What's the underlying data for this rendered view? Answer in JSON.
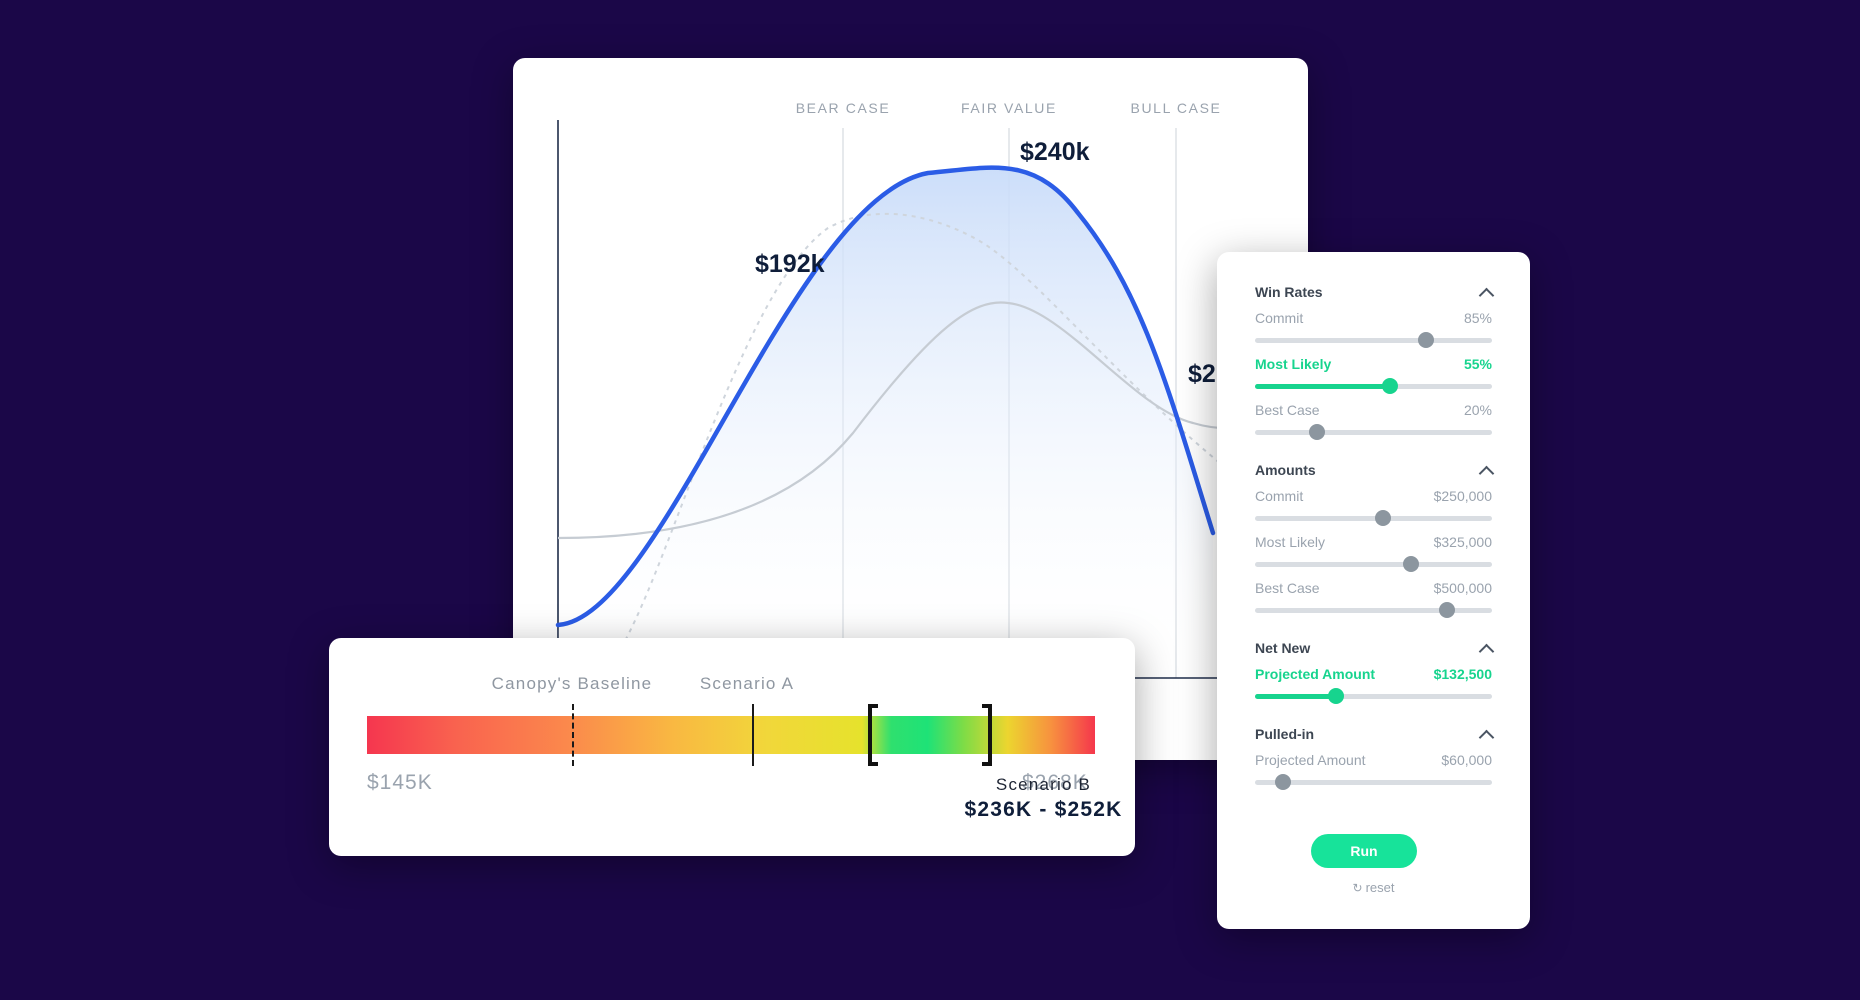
{
  "chart": {
    "zones": [
      "BEAR CASE",
      "FAIR VALUE",
      "BULL CASE"
    ],
    "value_labels": [
      "$192k",
      "$240k",
      "$2"
    ]
  },
  "range": {
    "baseline_label": "Canopy's Baseline",
    "scenario_a_label": "Scenario A",
    "min_label": "$145K",
    "max_label": "$268K",
    "scenario_b_name": "Scenario B",
    "scenario_b_range": "$236K - $252K"
  },
  "panel": {
    "win_rates": {
      "title": "Win Rates",
      "rows": [
        {
          "label": "Commit",
          "value": "85%",
          "level": 0.72
        },
        {
          "label": "Most Likely",
          "value": "55%",
          "level": 0.57
        },
        {
          "label": "Best Case",
          "value": "20%",
          "level": 0.26
        }
      ]
    },
    "amounts": {
      "title": "Amounts",
      "rows": [
        {
          "label": "Commit",
          "value": "$250,000",
          "level": 0.54
        },
        {
          "label": "Most Likely",
          "value": "$325,000",
          "level": 0.66
        },
        {
          "label": "Best Case",
          "value": "$500,000",
          "level": 0.81
        }
      ]
    },
    "net_new": {
      "title": "Net New",
      "rows": [
        {
          "label": "Projected Amount",
          "value": "$132,500",
          "level": 0.34
        }
      ]
    },
    "pulled_in": {
      "title": "Pulled-in",
      "rows": [
        {
          "label": "Projected Amount",
          "value": "$60,000",
          "level": 0.12
        }
      ]
    },
    "run_label": "Run",
    "reset_label": "reset"
  },
  "colors": {
    "background": "#1b0748",
    "accent_green": "#17d48e",
    "curve_blue": "#2b5ce6"
  }
}
